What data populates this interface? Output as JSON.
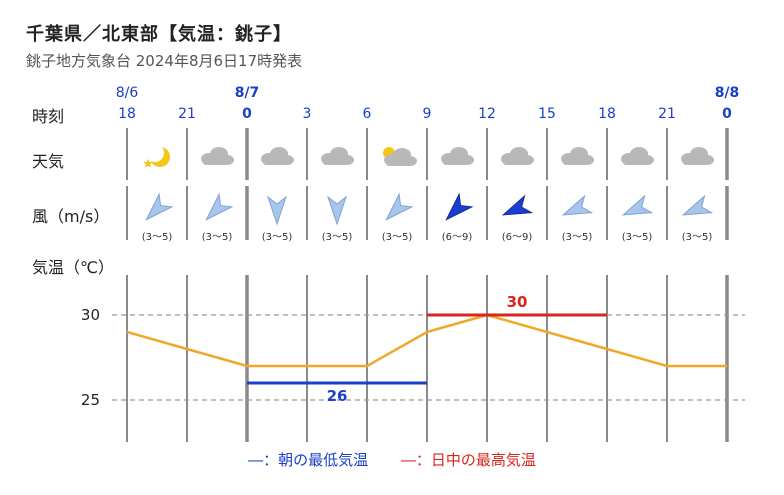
{
  "header": {
    "title": "千葉県／北東部【気温：銚子】",
    "subtitle": "銚子地方気象台 2024年8月6日17時発表"
  },
  "row_labels": {
    "time": "時刻",
    "weather": "天気",
    "wind": "風（m/s）",
    "temp": "気温（℃）"
  },
  "dates": [
    {
      "label": "8/6",
      "col": 0,
      "bold": false
    },
    {
      "label": "8/7",
      "col": 2,
      "bold": true
    },
    {
      "label": "8/8",
      "col": 10,
      "bold": true
    }
  ],
  "hours": [
    "18",
    "21",
    "0",
    "3",
    "6",
    "9",
    "12",
    "15",
    "18",
    "21",
    "0"
  ],
  "bold_hours": [
    2,
    10
  ],
  "weather": [
    {
      "icon": "moon-icon"
    },
    {
      "icon": "cloud-icon"
    },
    {
      "icon": "cloud-icon"
    },
    {
      "icon": "cloud-icon"
    },
    {
      "icon": "sun-cloud-icon"
    },
    {
      "icon": "cloud-icon"
    },
    {
      "icon": "cloud-icon"
    },
    {
      "icon": "cloud-icon"
    },
    {
      "icon": "cloud-icon"
    },
    {
      "icon": "cloud-icon"
    }
  ],
  "wind": [
    {
      "dir_deg": 225,
      "speed": "(3～5)",
      "strong": false
    },
    {
      "dir_deg": 225,
      "speed": "(3～5)",
      "strong": false
    },
    {
      "dir_deg": 180,
      "speed": "(3～5)",
      "strong": false
    },
    {
      "dir_deg": 180,
      "speed": "(3～5)",
      "strong": false
    },
    {
      "dir_deg": 225,
      "speed": "(3～5)",
      "strong": false
    },
    {
      "dir_deg": 225,
      "speed": "(6～9)",
      "strong": true
    },
    {
      "dir_deg": 247,
      "speed": "(6～9)",
      "strong": true
    },
    {
      "dir_deg": 247,
      "speed": "(3～5)",
      "strong": false
    },
    {
      "dir_deg": 247,
      "speed": "(3～5)",
      "strong": false
    },
    {
      "dir_deg": 247,
      "speed": "(3～5)",
      "strong": false
    }
  ],
  "chart_data": {
    "type": "line",
    "x": [
      "18",
      "21",
      "0",
      "3",
      "6",
      "9",
      "12",
      "15",
      "18",
      "21",
      "0"
    ],
    "ylim": [
      22.5,
      32
    ],
    "yticks": [
      25,
      30
    ],
    "grid": true,
    "series": [
      {
        "values": [
          29,
          28,
          27,
          27,
          27,
          29,
          30,
          29,
          28,
          27,
          27
        ],
        "color": "#f0a82a"
      }
    ],
    "min_temp": {
      "value": 26,
      "label": "26",
      "from": 2,
      "to": 5,
      "color": "#1a3fc9"
    },
    "max_temp": {
      "value": 30,
      "label": "30",
      "from": 5,
      "to": 8,
      "color": "#d8261c"
    }
  },
  "legend": {
    "low": "―：朝の最低気温",
    "high": "―：日中の最高気温"
  }
}
